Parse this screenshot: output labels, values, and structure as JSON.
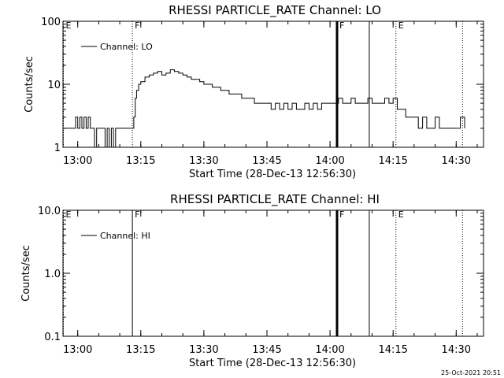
{
  "footer": {
    "timestamp": "25-Oct-2021 20:51"
  },
  "chart_data": [
    {
      "type": "line",
      "title": "RHESSI PARTICLE_RATE Channel: LO",
      "xlabel": "Start Time (28-Dec-13 12:56:30)",
      "ylabel": "Counts/sec",
      "yscale": "log",
      "ylim": [
        1,
        100
      ],
      "xlim": [
        "12:56:30",
        "14:36:30"
      ],
      "xticks": [
        "13:00",
        "13:15",
        "13:30",
        "13:45",
        "14:00",
        "14:15",
        "14:30"
      ],
      "yticks": [
        "1",
        "10",
        "100"
      ],
      "legend": {
        "label": "Channel: LO",
        "placement": "top-left"
      },
      "markers": [
        {
          "label": "E",
          "time": "12:56:30",
          "style": "dotted"
        },
        {
          "label": "F",
          "time": "13:13:00",
          "style": "dotted"
        },
        {
          "label": "F",
          "time": "14:01:40",
          "style": "thick"
        },
        {
          "label": "",
          "time": "14:09:20",
          "style": "solid"
        },
        {
          "label": "E",
          "time": "14:15:40",
          "style": "dotted"
        },
        {
          "label": "",
          "time": "14:31:30",
          "style": "dotted"
        }
      ],
      "series": [
        {
          "name": "Channel: LO",
          "x": [
            "12:56:30",
            "12:59:00",
            "12:59:30",
            "13:00:00",
            "13:00:30",
            "13:01:00",
            "13:01:30",
            "13:02:00",
            "13:02:30",
            "13:03:00",
            "13:03:30",
            "13:04:00",
            "13:04:30",
            "13:05:00",
            "13:05:30",
            "13:06:00",
            "13:06:30",
            "13:07:00",
            "13:07:30",
            "13:08:00",
            "13:08:30",
            "13:09:00",
            "13:09:30",
            "13:10:00",
            "13:10:30",
            "13:11:00",
            "13:11:30",
            "13:12:00",
            "13:12:30",
            "13:13:00",
            "13:13:20",
            "13:13:40",
            "13:14:00",
            "13:14:30",
            "13:15:00",
            "13:16:00",
            "13:17:00",
            "13:18:00",
            "13:19:00",
            "13:20:00",
            "13:21:00",
            "13:22:00",
            "13:23:00",
            "13:24:00",
            "13:25:00",
            "13:26:00",
            "13:27:00",
            "13:28:00",
            "13:29:00",
            "13:30:00",
            "13:31:00",
            "13:32:00",
            "13:33:00",
            "13:34:00",
            "13:35:00",
            "13:36:00",
            "13:37:00",
            "13:38:00",
            "13:39:00",
            "13:40:00",
            "13:41:00",
            "13:42:00",
            "13:43:00",
            "13:44:00",
            "13:45:00",
            "13:46:00",
            "13:47:00",
            "13:48:00",
            "13:49:00",
            "13:50:00",
            "13:51:00",
            "13:52:00",
            "13:53:00",
            "13:54:00",
            "13:55:00",
            "13:56:00",
            "13:57:00",
            "13:58:00",
            "13:59:00",
            "14:00:00",
            "14:01:00",
            "14:02:00",
            "14:03:00",
            "14:04:00",
            "14:05:00",
            "14:06:00",
            "14:07:00",
            "14:08:00",
            "14:09:00",
            "14:10:00",
            "14:11:00",
            "14:12:00",
            "14:13:00",
            "14:14:00",
            "14:15:00",
            "14:16:00",
            "14:17:00",
            "14:18:00",
            "14:19:00",
            "14:20:00",
            "14:21:00",
            "14:22:00",
            "14:23:00",
            "14:24:00",
            "14:25:00",
            "14:26:00",
            "14:27:00",
            "14:28:00",
            "14:29:00",
            "14:30:00",
            "14:31:00",
            "14:32:00"
          ],
          "values": [
            2,
            2,
            3,
            2,
            3,
            2,
            3,
            2,
            3,
            2,
            2,
            1,
            2,
            2,
            2,
            2,
            1,
            2,
            1,
            2,
            1,
            2,
            2,
            2,
            2,
            2,
            2,
            2,
            2,
            2,
            3,
            6,
            8,
            10,
            11,
            13,
            14,
            15,
            16,
            14,
            15,
            17,
            16,
            15,
            14,
            13,
            12,
            12,
            11,
            10,
            10,
            9,
            9,
            8,
            8,
            7,
            7,
            7,
            6,
            6,
            6,
            5,
            5,
            5,
            5,
            4,
            5,
            4,
            5,
            4,
            5,
            4,
            4,
            5,
            4,
            5,
            4,
            5,
            5,
            5,
            5,
            6,
            5,
            5,
            6,
            5,
            5,
            5,
            6,
            5,
            5,
            5,
            6,
            5,
            6,
            4,
            4,
            3,
            3,
            3,
            2,
            3,
            2,
            2,
            3,
            2,
            2,
            2,
            2,
            2,
            3,
            2
          ]
        }
      ]
    },
    {
      "type": "line",
      "title": "RHESSI PARTICLE_RATE Channel: HI",
      "xlabel": "Start Time (28-Dec-13 12:56:30)",
      "ylabel": "Counts/sec",
      "yscale": "log",
      "ylim": [
        0.1,
        10
      ],
      "xlim": [
        "12:56:30",
        "14:36:30"
      ],
      "xticks": [
        "13:00",
        "13:15",
        "13:30",
        "13:45",
        "14:00",
        "14:15",
        "14:30"
      ],
      "yticks": [
        "0.1",
        "1.0",
        "10.0"
      ],
      "legend": {
        "label": "Channel: HI",
        "placement": "top-left"
      },
      "markers": [
        {
          "label": "E",
          "time": "12:56:30",
          "style": "dotted"
        },
        {
          "label": "F",
          "time": "13:13:00",
          "style": "solid"
        },
        {
          "label": "F",
          "time": "14:01:40",
          "style": "thick"
        },
        {
          "label": "",
          "time": "14:09:20",
          "style": "solid"
        },
        {
          "label": "E",
          "time": "14:15:40",
          "style": "dotted"
        },
        {
          "label": "",
          "time": "14:31:30",
          "style": "dotted"
        }
      ],
      "series": [
        {
          "name": "Channel: HI",
          "x": [],
          "values": []
        }
      ]
    }
  ]
}
